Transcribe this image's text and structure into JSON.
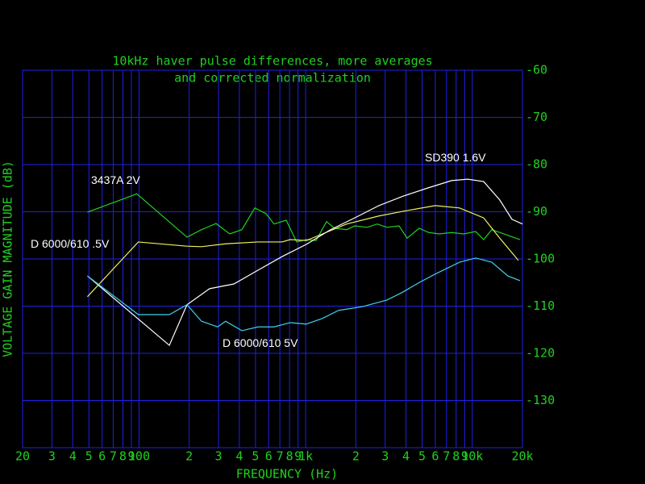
{
  "chart_data": {
    "type": "line",
    "title": [
      "10kHz haver pulse differences, more averages",
      "and corrected normalization"
    ],
    "x_label": "FREQUENCY (Hz)",
    "y_label": "VOLTAGE GAIN MAGNITUDE (dB)",
    "xscale": "log",
    "xlim": [
      20,
      20000
    ],
    "ylim": [
      -140,
      -60
    ],
    "grid": true,
    "xticks": [
      {
        "value": 20,
        "label": "20"
      },
      {
        "value": 30,
        "label": "3"
      },
      {
        "value": 40,
        "label": "4"
      },
      {
        "value": 50,
        "label": "5"
      },
      {
        "value": 60,
        "label": "6"
      },
      {
        "value": 70,
        "label": "7"
      },
      {
        "value": 80,
        "label": "8"
      },
      {
        "value": 90,
        "label": "9"
      },
      {
        "value": 100,
        "label": "100"
      },
      {
        "value": 200,
        "label": "2"
      },
      {
        "value": 300,
        "label": "3"
      },
      {
        "value": 400,
        "label": "4"
      },
      {
        "value": 500,
        "label": "5"
      },
      {
        "value": 600,
        "label": "6"
      },
      {
        "value": 700,
        "label": "7"
      },
      {
        "value": 800,
        "label": "8"
      },
      {
        "value": 900,
        "label": "9"
      },
      {
        "value": 1000,
        "label": "1k"
      },
      {
        "value": 2000,
        "label": "2"
      },
      {
        "value": 3000,
        "label": "3"
      },
      {
        "value": 4000,
        "label": "4"
      },
      {
        "value": 5000,
        "label": "5"
      },
      {
        "value": 6000,
        "label": "6"
      },
      {
        "value": 7000,
        "label": "7"
      },
      {
        "value": 8000,
        "label": "8"
      },
      {
        "value": 9000,
        "label": "9"
      },
      {
        "value": 10000,
        "label": "10k"
      },
      {
        "value": 20000,
        "label": "20k"
      }
    ],
    "yticks": [
      -130,
      -120,
      -110,
      -100,
      -90,
      -80,
      -70,
      -60
    ],
    "series": [
      {
        "name": "3437A  2V",
        "color": "#20d020",
        "x": [
          49,
          97,
          194,
          237,
          290,
          350,
          414,
          495,
          578,
          646,
          764,
          883,
          1010,
          1154,
          1334,
          1490,
          1762,
          1969,
          2330,
          2690,
          3076,
          3632,
          4063,
          4800,
          5485,
          6340,
          7500,
          8860,
          10470,
          11700,
          13090,
          15460,
          19320
        ],
        "values": [
          -90.1,
          -86.2,
          -95.4,
          -93.8,
          -92.5,
          -94.7,
          -93.8,
          -89.2,
          -90.4,
          -92.6,
          -91.8,
          -96.4,
          -95.9,
          -96.1,
          -92.1,
          -93.5,
          -93.8,
          -93,
          -93.3,
          -92.6,
          -93.3,
          -93,
          -95.6,
          -93.5,
          -94.4,
          -94.7,
          -94.4,
          -94.7,
          -94.2,
          -95.9,
          -93.8,
          -94.7,
          -95.9
        ]
      },
      {
        "name": "D 6000/610 .5V",
        "color": "#f0f060",
        "x": [
          49,
          99,
          194,
          237,
          331,
          517,
          722,
          807,
          1010,
          1262,
          1762,
          2750,
          3840,
          6000,
          8380,
          11700,
          14620,
          18890
        ],
        "values": [
          -108,
          -96.4,
          -97.3,
          -97.4,
          -96.8,
          -96.4,
          -96.4,
          -95.9,
          -96.1,
          -94.7,
          -92.6,
          -90.9,
          -89.9,
          -88.7,
          -89.2,
          -91.3,
          -95.6,
          -100.3
        ]
      },
      {
        "name": "SD390  1.6V",
        "color": "#ffffff",
        "x": [
          49,
          152,
          194,
          265,
          371,
          517,
          722,
          1010,
          1410,
          1969,
          2750,
          3840,
          5370,
          7500,
          9370,
          11700,
          14620,
          17300,
          20000
        ],
        "values": [
          -103.6,
          -118.3,
          -109.7,
          -106.3,
          -105.3,
          -102.4,
          -99.5,
          -96.9,
          -93.8,
          -91.3,
          -88.7,
          -86.7,
          -85,
          -83.4,
          -83.1,
          -83.6,
          -87.5,
          -91.6,
          -92.6
        ]
      },
      {
        "name": "D 6000/610  5V",
        "color": "#40d0f0",
        "x": [
          49,
          99,
          152,
          194,
          237,
          296,
          331,
          414,
          517,
          646,
          807,
          1010,
          1262,
          1577,
          2200,
          3076,
          3840,
          4800,
          6000,
          8380,
          10470,
          13090,
          16350,
          19320
        ],
        "values": [
          -103.6,
          -111.8,
          -111.8,
          -109.7,
          -113.2,
          -114.4,
          -113.2,
          -115.2,
          -114.4,
          -114.4,
          -113.5,
          -113.8,
          -112.6,
          -110.9,
          -110.1,
          -108.7,
          -107,
          -105,
          -103.2,
          -100.7,
          -99.8,
          -100.7,
          -103.6,
          -104.6
        ]
      }
    ]
  }
}
